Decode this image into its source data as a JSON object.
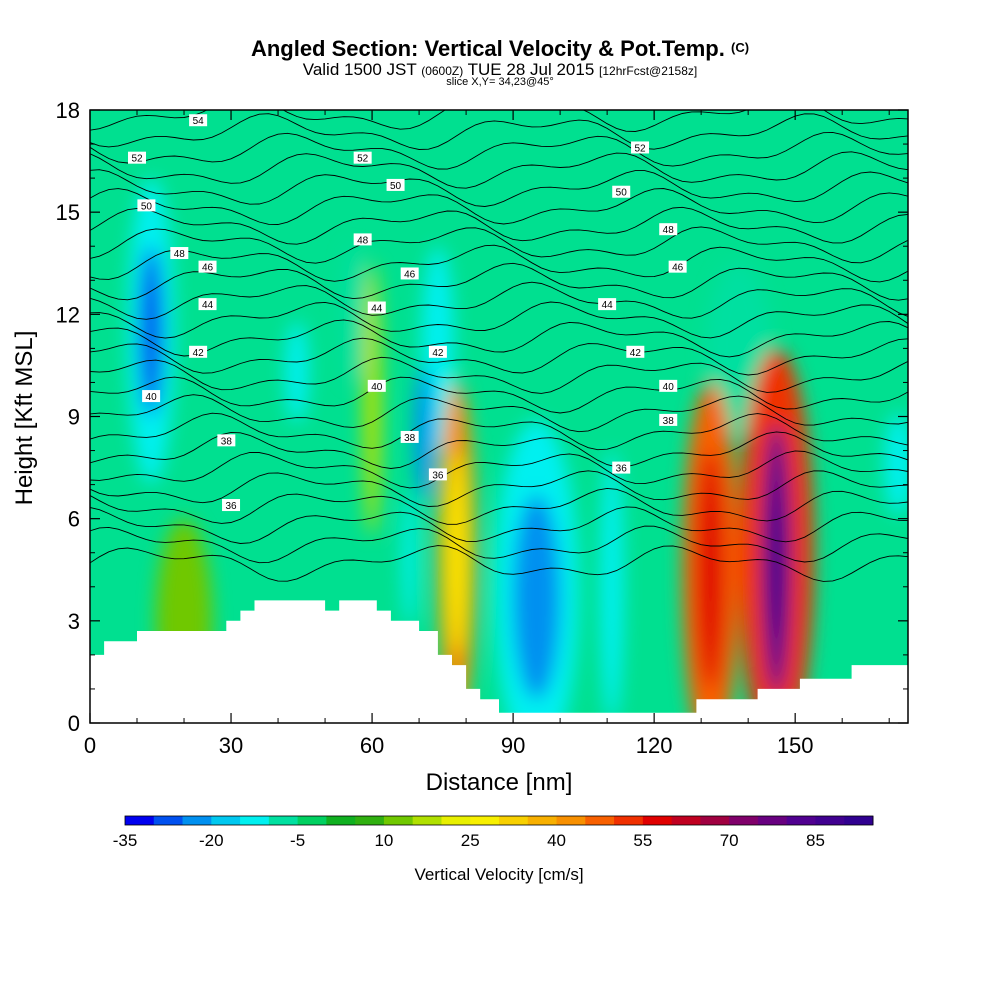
{
  "chart_data": {
    "type": "heatmap",
    "title": "Angled Section: Vertical Velocity & Pot.Temp.",
    "title_mark": "(C)",
    "subtitle_parts": [
      "Valid 1500 JST ",
      "(0600Z)",
      " TUE 28 Jul 2015 ",
      "[12hrFcst@2158z]"
    ],
    "slice_label": "slice X,Y= 34,23@45°",
    "xlabel": "Distance [nm]",
    "ylabel": "Height [Kft MSL]",
    "xlim": [
      0,
      174
    ],
    "ylim": [
      0,
      18
    ],
    "x_ticks": [
      0,
      30,
      60,
      90,
      120,
      150
    ],
    "y_ticks": [
      0,
      3,
      6,
      9,
      12,
      15,
      18
    ],
    "colorbar": {
      "label": "Vertical Velocity [cm/s]",
      "min": -35,
      "max": 95,
      "step": 5,
      "tick_values": [
        -35,
        -20,
        -5,
        10,
        25,
        40,
        55,
        70,
        85
      ],
      "colors": [
        "#0000f0",
        "#0050f0",
        "#0090f0",
        "#00c8f0",
        "#00f0f0",
        "#00e0a0",
        "#00d060",
        "#10b020",
        "#30b010",
        "#70c800",
        "#b0e000",
        "#e8f000",
        "#f8f000",
        "#f8d000",
        "#f8b000",
        "#f89000",
        "#f86000",
        "#f03000",
        "#e00000",
        "#c00020",
        "#a00040",
        "#80006a",
        "#680080",
        "#500090",
        "#400090",
        "#300090"
      ]
    },
    "theta_contours": {
      "unit": "C",
      "labels": [
        {
          "value": 54,
          "x": 23,
          "y": 17.7
        },
        {
          "value": 52,
          "x": 10,
          "y": 16.6
        },
        {
          "value": 52,
          "x": 58,
          "y": 16.6
        },
        {
          "value": 52,
          "x": 117,
          "y": 16.9
        },
        {
          "value": 50,
          "x": 12,
          "y": 15.2
        },
        {
          "value": 50,
          "x": 65,
          "y": 15.8
        },
        {
          "value": 50,
          "x": 113,
          "y": 15.6
        },
        {
          "value": 48,
          "x": 19,
          "y": 13.8
        },
        {
          "value": 48,
          "x": 58,
          "y": 14.2
        },
        {
          "value": 48,
          "x": 123,
          "y": 14.5
        },
        {
          "value": 46,
          "x": 25,
          "y": 13.4
        },
        {
          "value": 46,
          "x": 68,
          "y": 13.2
        },
        {
          "value": 46,
          "x": 125,
          "y": 13.4
        },
        {
          "value": 44,
          "x": 25,
          "y": 12.3
        },
        {
          "value": 44,
          "x": 61,
          "y": 12.2
        },
        {
          "value": 44,
          "x": 110,
          "y": 12.3
        },
        {
          "value": 42,
          "x": 23,
          "y": 10.9
        },
        {
          "value": 42,
          "x": 74,
          "y": 10.9
        },
        {
          "value": 42,
          "x": 116,
          "y": 10.9
        },
        {
          "value": 40,
          "x": 13,
          "y": 9.6
        },
        {
          "value": 40,
          "x": 61,
          "y": 9.9
        },
        {
          "value": 40,
          "x": 123,
          "y": 9.9
        },
        {
          "value": 38,
          "x": 29,
          "y": 8.3
        },
        {
          "value": 38,
          "x": 68,
          "y": 8.4
        },
        {
          "value": 38,
          "x": 123,
          "y": 8.9
        },
        {
          "value": 36,
          "x": 30,
          "y": 6.4
        },
        {
          "value": 36,
          "x": 74,
          "y": 7.3
        },
        {
          "value": 36,
          "x": 113,
          "y": 7.5
        }
      ]
    },
    "terrain": [
      [
        0,
        2.0
      ],
      [
        3,
        2.0
      ],
      [
        3,
        2.4
      ],
      [
        10,
        2.4
      ],
      [
        10,
        2.7
      ],
      [
        29,
        2.7
      ],
      [
        29,
        3.0
      ],
      [
        32,
        3.0
      ],
      [
        32,
        3.3
      ],
      [
        35,
        3.3
      ],
      [
        35,
        3.6
      ],
      [
        50,
        3.6
      ],
      [
        50,
        3.3
      ],
      [
        53,
        3.3
      ],
      [
        53,
        3.6
      ],
      [
        61,
        3.6
      ],
      [
        61,
        3.3
      ],
      [
        64,
        3.3
      ],
      [
        64,
        3.0
      ],
      [
        70,
        3.0
      ],
      [
        70,
        2.7
      ],
      [
        74,
        2.7
      ],
      [
        74,
        2.0
      ],
      [
        77,
        2.0
      ],
      [
        77,
        1.7
      ],
      [
        80,
        1.7
      ],
      [
        80,
        1.0
      ],
      [
        83,
        1.0
      ],
      [
        83,
        0.7
      ],
      [
        87,
        0.7
      ],
      [
        87,
        0.3
      ],
      [
        129,
        0.3
      ],
      [
        129,
        0.7
      ],
      [
        142,
        0.7
      ],
      [
        142,
        1.0
      ],
      [
        151,
        1.0
      ],
      [
        151,
        1.3
      ],
      [
        162,
        1.3
      ],
      [
        162,
        1.7
      ],
      [
        174,
        1.7
      ]
    ],
    "velocity_cells": [
      {
        "x": 13,
        "y": 11.5,
        "rx": 5,
        "ry": 4.5,
        "v": -15
      },
      {
        "x": 13,
        "y": 11.5,
        "rx": 2.5,
        "ry": 2.5,
        "v": -28
      },
      {
        "x": 44,
        "y": 10.3,
        "rx": 2.5,
        "ry": 1.5,
        "v": -12
      },
      {
        "x": 56,
        "y": 12,
        "rx": 2.5,
        "ry": 2,
        "v": -10
      },
      {
        "x": 74,
        "y": 11,
        "rx": 3.5,
        "ry": 3,
        "v": -12
      },
      {
        "x": 71,
        "y": 8.5,
        "rx": 2,
        "ry": 2,
        "v": -22
      },
      {
        "x": 68,
        "y": 4.8,
        "rx": 1.5,
        "ry": 2,
        "v": -12
      },
      {
        "x": 95,
        "y": 3.9,
        "rx": 9,
        "ry": 5,
        "v": -12
      },
      {
        "x": 95,
        "y": 3.7,
        "rx": 5,
        "ry": 3,
        "v": -22
      },
      {
        "x": 111,
        "y": 4,
        "rx": 2.5,
        "ry": 4,
        "v": -15
      },
      {
        "x": 138,
        "y": 11,
        "rx": 7,
        "ry": 2.5,
        "v": -10
      },
      {
        "x": 172,
        "y": 7.6,
        "rx": 3,
        "ry": 1.5,
        "v": -12
      },
      {
        "x": 78,
        "y": 5,
        "rx": 4,
        "ry": 5,
        "v": 40
      },
      {
        "x": 78,
        "y": 5,
        "rx": 2,
        "ry": 3,
        "v": 28
      },
      {
        "x": 132,
        "y": 4.5,
        "rx": 6,
        "ry": 5.5,
        "v": 45
      },
      {
        "x": 132,
        "y": 4.5,
        "rx": 3,
        "ry": 3.5,
        "v": 55
      },
      {
        "x": 146,
        "y": 5,
        "rx": 8,
        "ry": 6,
        "v": 50
      },
      {
        "x": 146,
        "y": 4.8,
        "rx": 3,
        "ry": 4,
        "v": 80
      },
      {
        "x": 146,
        "y": 4.5,
        "rx": 1.5,
        "ry": 2,
        "v": 92
      },
      {
        "x": 60,
        "y": 9.5,
        "rx": 2,
        "ry": 4,
        "v": 18
      },
      {
        "x": 20,
        "y": 3,
        "rx": 6,
        "ry": 3,
        "v": 12
      }
    ]
  }
}
